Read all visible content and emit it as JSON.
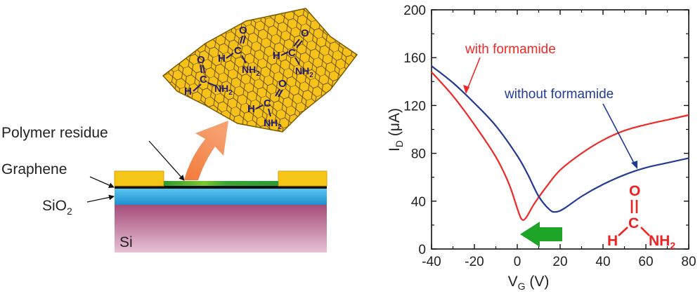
{
  "diagram": {
    "labels": {
      "polymer_residue": "Polymer residue",
      "graphene": "Graphene",
      "sio2": "SiO",
      "sio2_sub": "2",
      "si": "Si"
    },
    "molecule_text": {
      "O": "O",
      "H": "H",
      "C": "C",
      "NH": "NH",
      "sub2": "2"
    },
    "colors": {
      "gold": "#f5c518",
      "blue": "#1e9ad6",
      "si_top": "#a54b78",
      "si_bottom": "#e7c2d6",
      "residue": "#3aa535",
      "arrow": "#f58a4c",
      "molecule": "#241a7a"
    }
  },
  "chart_data": {
    "type": "line",
    "xlabel": "V",
    "xlabel_sub": "G",
    "xlabel_unit": " (V)",
    "ylabel": "I",
    "ylabel_sub": "D",
    "ylabel_unit": " (μA)",
    "xlim": [
      -40,
      80
    ],
    "ylim": [
      0,
      200
    ],
    "x_ticks": [
      "-40",
      "-20",
      "0",
      "20",
      "40",
      "60",
      "80"
    ],
    "y_ticks": [
      "0",
      "40",
      "80",
      "120",
      "160",
      "200"
    ],
    "series": [
      {
        "name": "with formamide",
        "color": "#f02828",
        "points": [
          [
            -40,
            148
          ],
          [
            -30,
            128
          ],
          [
            -20,
            104
          ],
          [
            -10,
            77
          ],
          [
            -4,
            55
          ],
          [
            0,
            34
          ],
          [
            2,
            25
          ],
          [
            4,
            26
          ],
          [
            8,
            38
          ],
          [
            14,
            53
          ],
          [
            20,
            66
          ],
          [
            30,
            80
          ],
          [
            40,
            91
          ],
          [
            50,
            99
          ],
          [
            60,
            104
          ],
          [
            70,
            108
          ],
          [
            80,
            112
          ]
        ]
      },
      {
        "name": "without formamide",
        "color": "#233b94",
        "points": [
          [
            -40,
            153
          ],
          [
            -30,
            139
          ],
          [
            -20,
            122
          ],
          [
            -10,
            103
          ],
          [
            0,
            78
          ],
          [
            5,
            62
          ],
          [
            10,
            44
          ],
          [
            15,
            33
          ],
          [
            18,
            31
          ],
          [
            22,
            34
          ],
          [
            30,
            44
          ],
          [
            40,
            54
          ],
          [
            50,
            62
          ],
          [
            60,
            68
          ],
          [
            70,
            72
          ],
          [
            80,
            76
          ]
        ]
      }
    ],
    "annotations": {
      "with_label": "with formamide",
      "without_label": "without formamide"
    },
    "shift_arrow_color": "#1ea528",
    "formamide": {
      "O": "O",
      "H": "H",
      "C": "C",
      "NH": "NH",
      "sub2": "2",
      "color": "#ee2222"
    }
  }
}
